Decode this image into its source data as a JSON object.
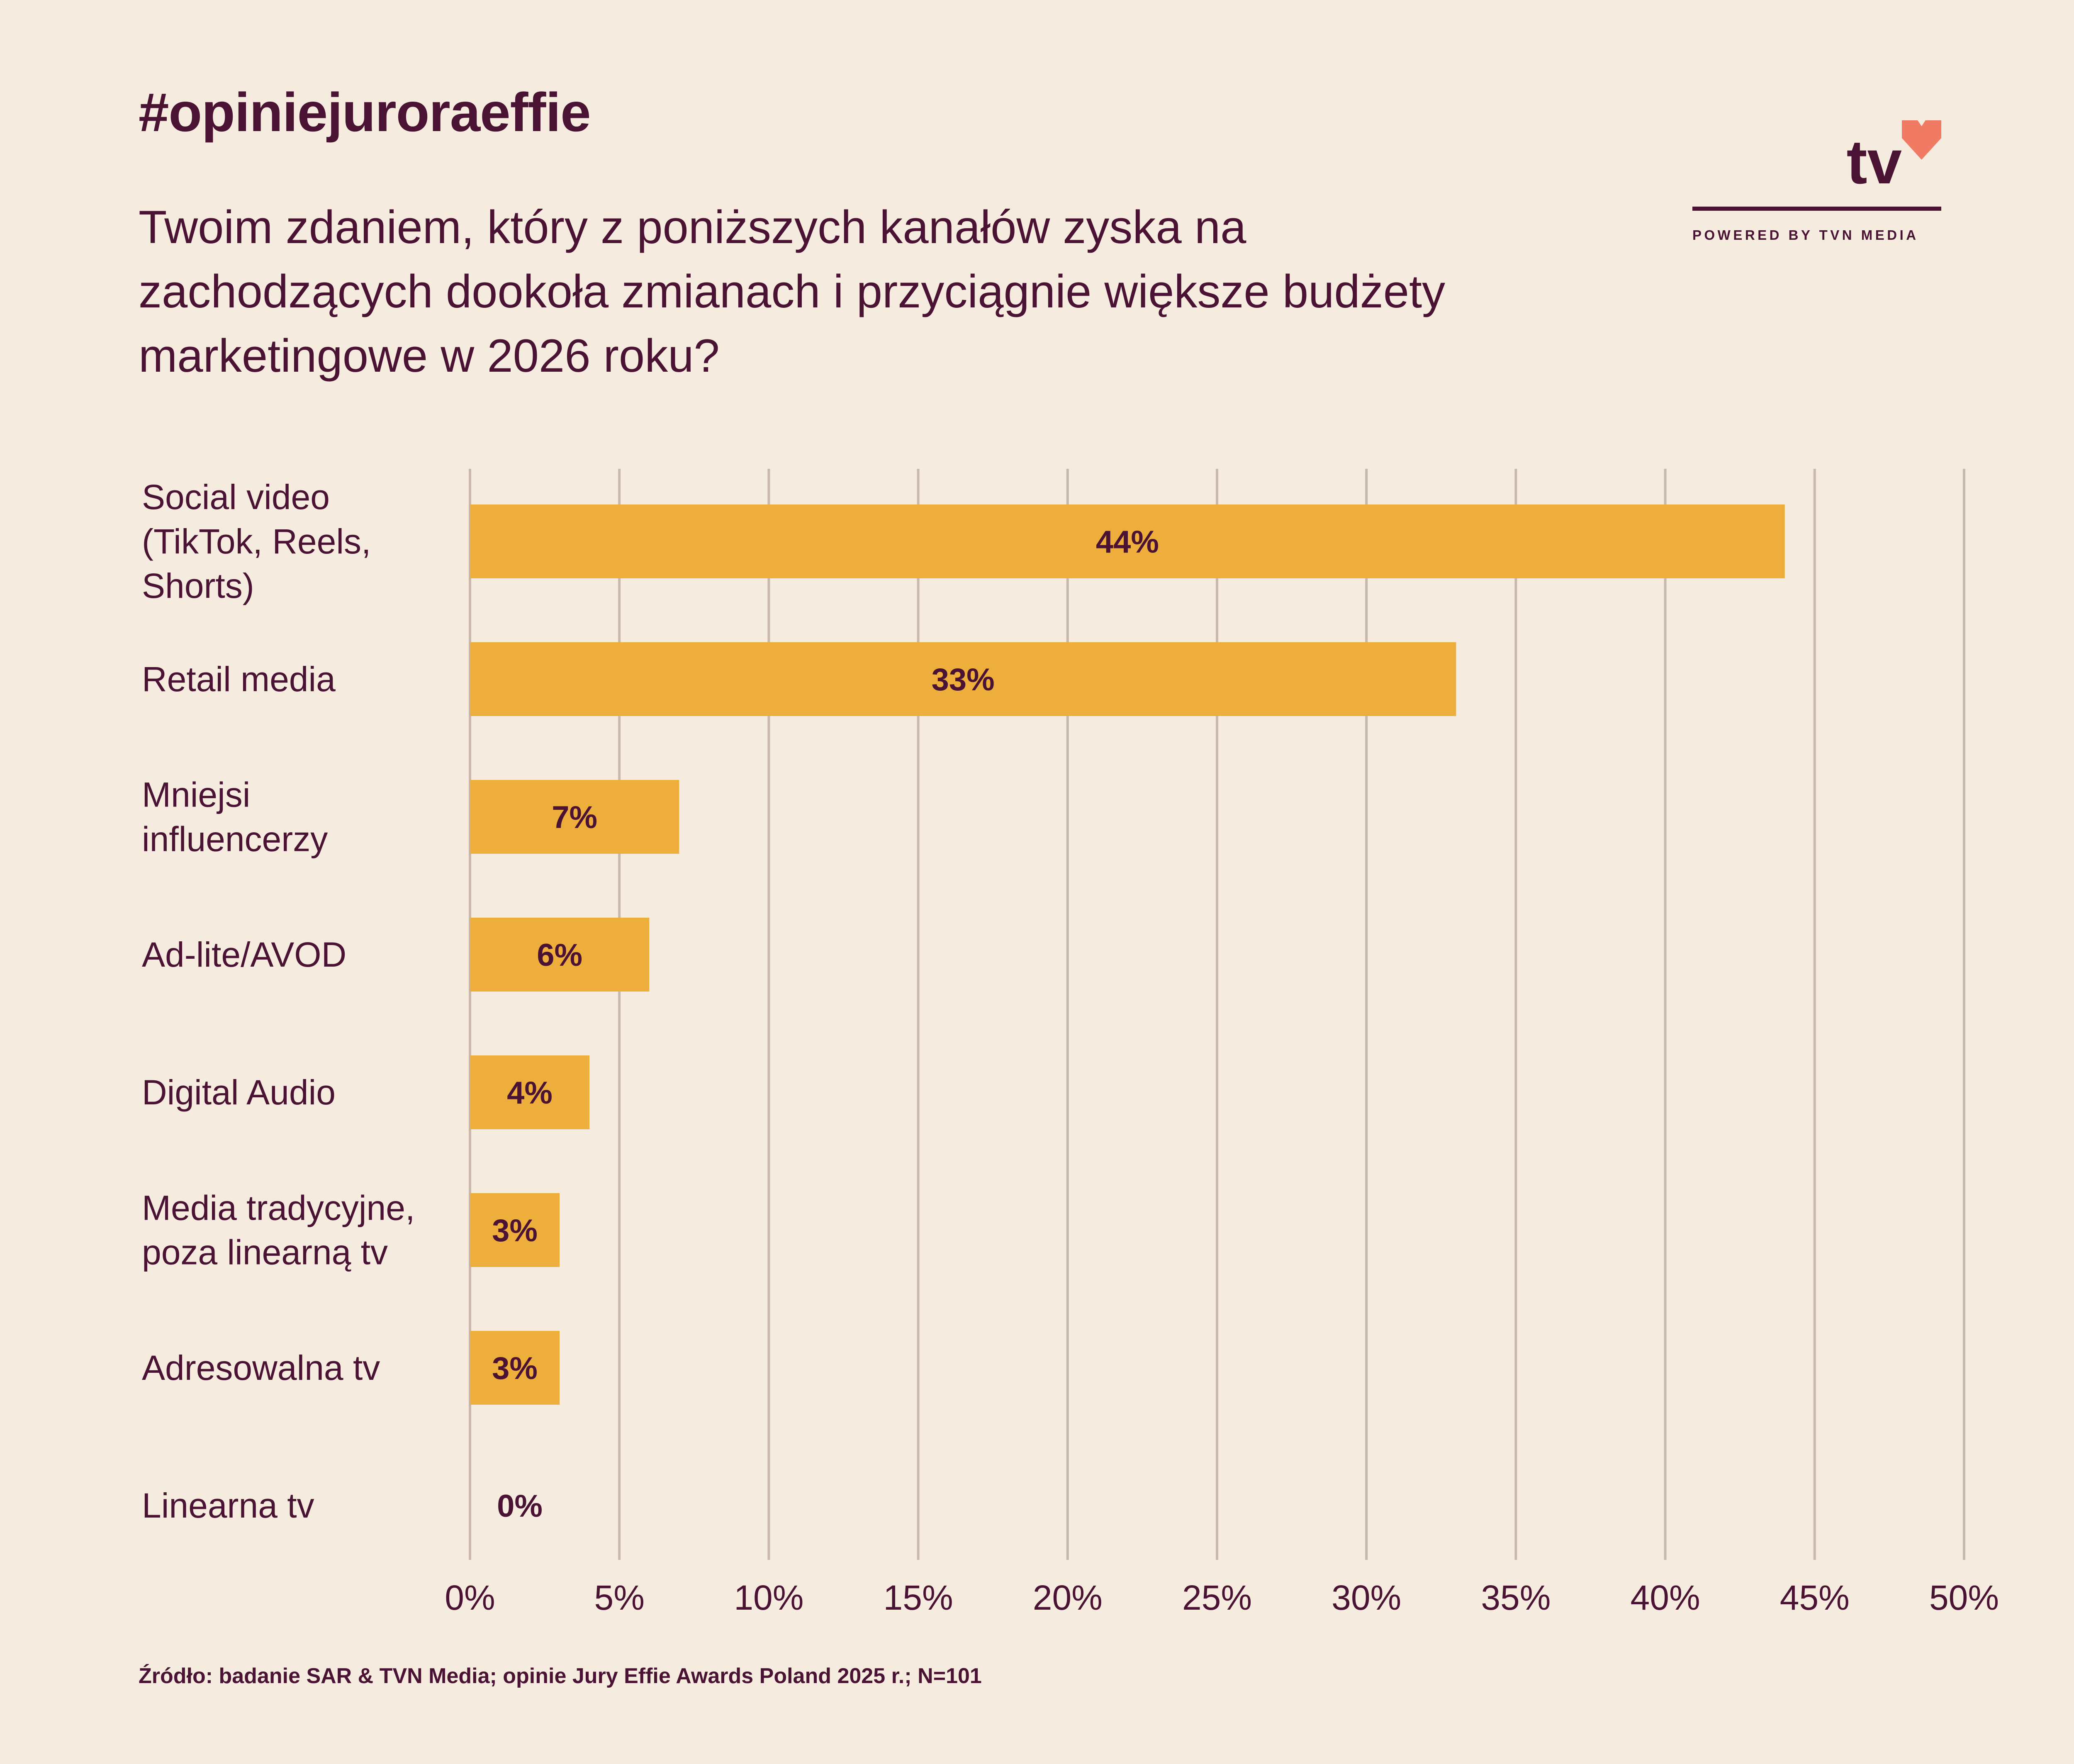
{
  "header": {
    "hashtag": "#opiniejuroraeffie",
    "question": "Twoim zdaniem, który z poniższych kanałów zyska na zachodzących dookoła zmianach i przyciągnie większe budżety marketingowe w 2026 roku?"
  },
  "logo": {
    "text": "tv",
    "tagline": "POWERED BY TVN MEDIA",
    "heart_color": "#f07a63"
  },
  "colors": {
    "background": "#f5ecdf",
    "bar": "#edae3c",
    "text": "#4a1334",
    "grid": "#c9b9ac"
  },
  "chart_data": {
    "type": "bar",
    "orientation": "horizontal",
    "categories": [
      [
        "Social video",
        "(TikTok, Reels,",
        "Shorts)"
      ],
      [
        "Retail media"
      ],
      [
        "Mniejsi",
        "influencerzy"
      ],
      [
        "Ad-lite/AVOD"
      ],
      [
        "Digital Audio"
      ],
      [
        "Media tradycyjne,",
        "poza linearną tv"
      ],
      [
        "Adresowalna tv"
      ],
      [
        "Linearna tv"
      ]
    ],
    "values": [
      44,
      33,
      7,
      6,
      4,
      3,
      3,
      0
    ],
    "value_labels": [
      "44%",
      "33%",
      "7%",
      "6%",
      "4%",
      "3%",
      "3%",
      "0%"
    ],
    "xlim": [
      0,
      50
    ],
    "ticks": [
      "0%",
      "5%",
      "10%",
      "15%",
      "20%",
      "25%",
      "30%",
      "35%",
      "40%",
      "45%",
      "50%"
    ],
    "grid": true
  },
  "footer": {
    "source": "Źródło: badanie SAR & TVN Media; opinie Jury Effie Awards Poland 2025 r.; N=101"
  }
}
